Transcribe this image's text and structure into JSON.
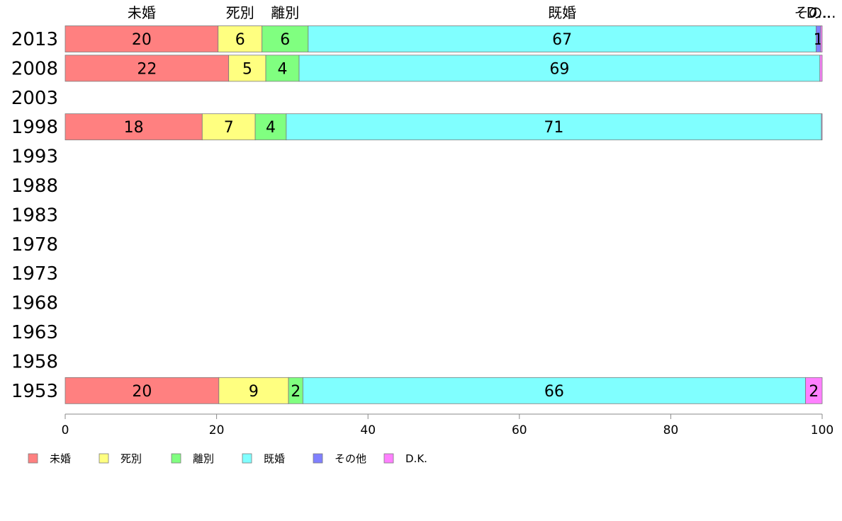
{
  "chart_data": {
    "type": "bar",
    "orientation": "horizontal",
    "stacked": true,
    "categories": [
      "2013",
      "2008",
      "2003",
      "1998",
      "1993",
      "1988",
      "1983",
      "1978",
      "1973",
      "1968",
      "1963",
      "1958",
      "1953"
    ],
    "series": [
      {
        "name": "未婚",
        "color": "#ff8080",
        "values": [
          20.2,
          21.6,
          null,
          18.1,
          null,
          null,
          null,
          null,
          null,
          null,
          null,
          null,
          20.3
        ]
      },
      {
        "name": "死別",
        "color": "#ffff80",
        "values": [
          5.8,
          4.9,
          null,
          7.0,
          null,
          null,
          null,
          null,
          null,
          null,
          null,
          null,
          9.2
        ]
      },
      {
        "name": "離別",
        "color": "#80ff80",
        "values": [
          6.1,
          4.4,
          null,
          4.1,
          null,
          null,
          null,
          null,
          null,
          null,
          null,
          null,
          1.9
        ]
      },
      {
        "name": "既婚",
        "color": "#80ffff",
        "values": [
          67.1,
          68.8,
          null,
          70.7,
          null,
          null,
          null,
          null,
          null,
          null,
          null,
          null,
          66.4
        ]
      },
      {
        "name": "その他",
        "color": "#8080ff",
        "values": [
          0.6,
          0.0,
          null,
          0.0,
          null,
          null,
          null,
          null,
          null,
          null,
          null,
          null,
          0.0
        ]
      },
      {
        "name": "D.K.",
        "color": "#ff80ff",
        "values": [
          0.2,
          0.3,
          null,
          0.1,
          null,
          null,
          null,
          null,
          null,
          null,
          null,
          null,
          2.2
        ]
      }
    ],
    "top_labels": [
      "未婚",
      "死別",
      "離別",
      "既婚",
      "その..."
    ],
    "top_labels_extra": "D...",
    "xlim": [
      0,
      100
    ],
    "xticks": [
      "0",
      "20",
      "40",
      "60",
      "80",
      "100"
    ],
    "legend_position": "bottom",
    "grid": false
  }
}
